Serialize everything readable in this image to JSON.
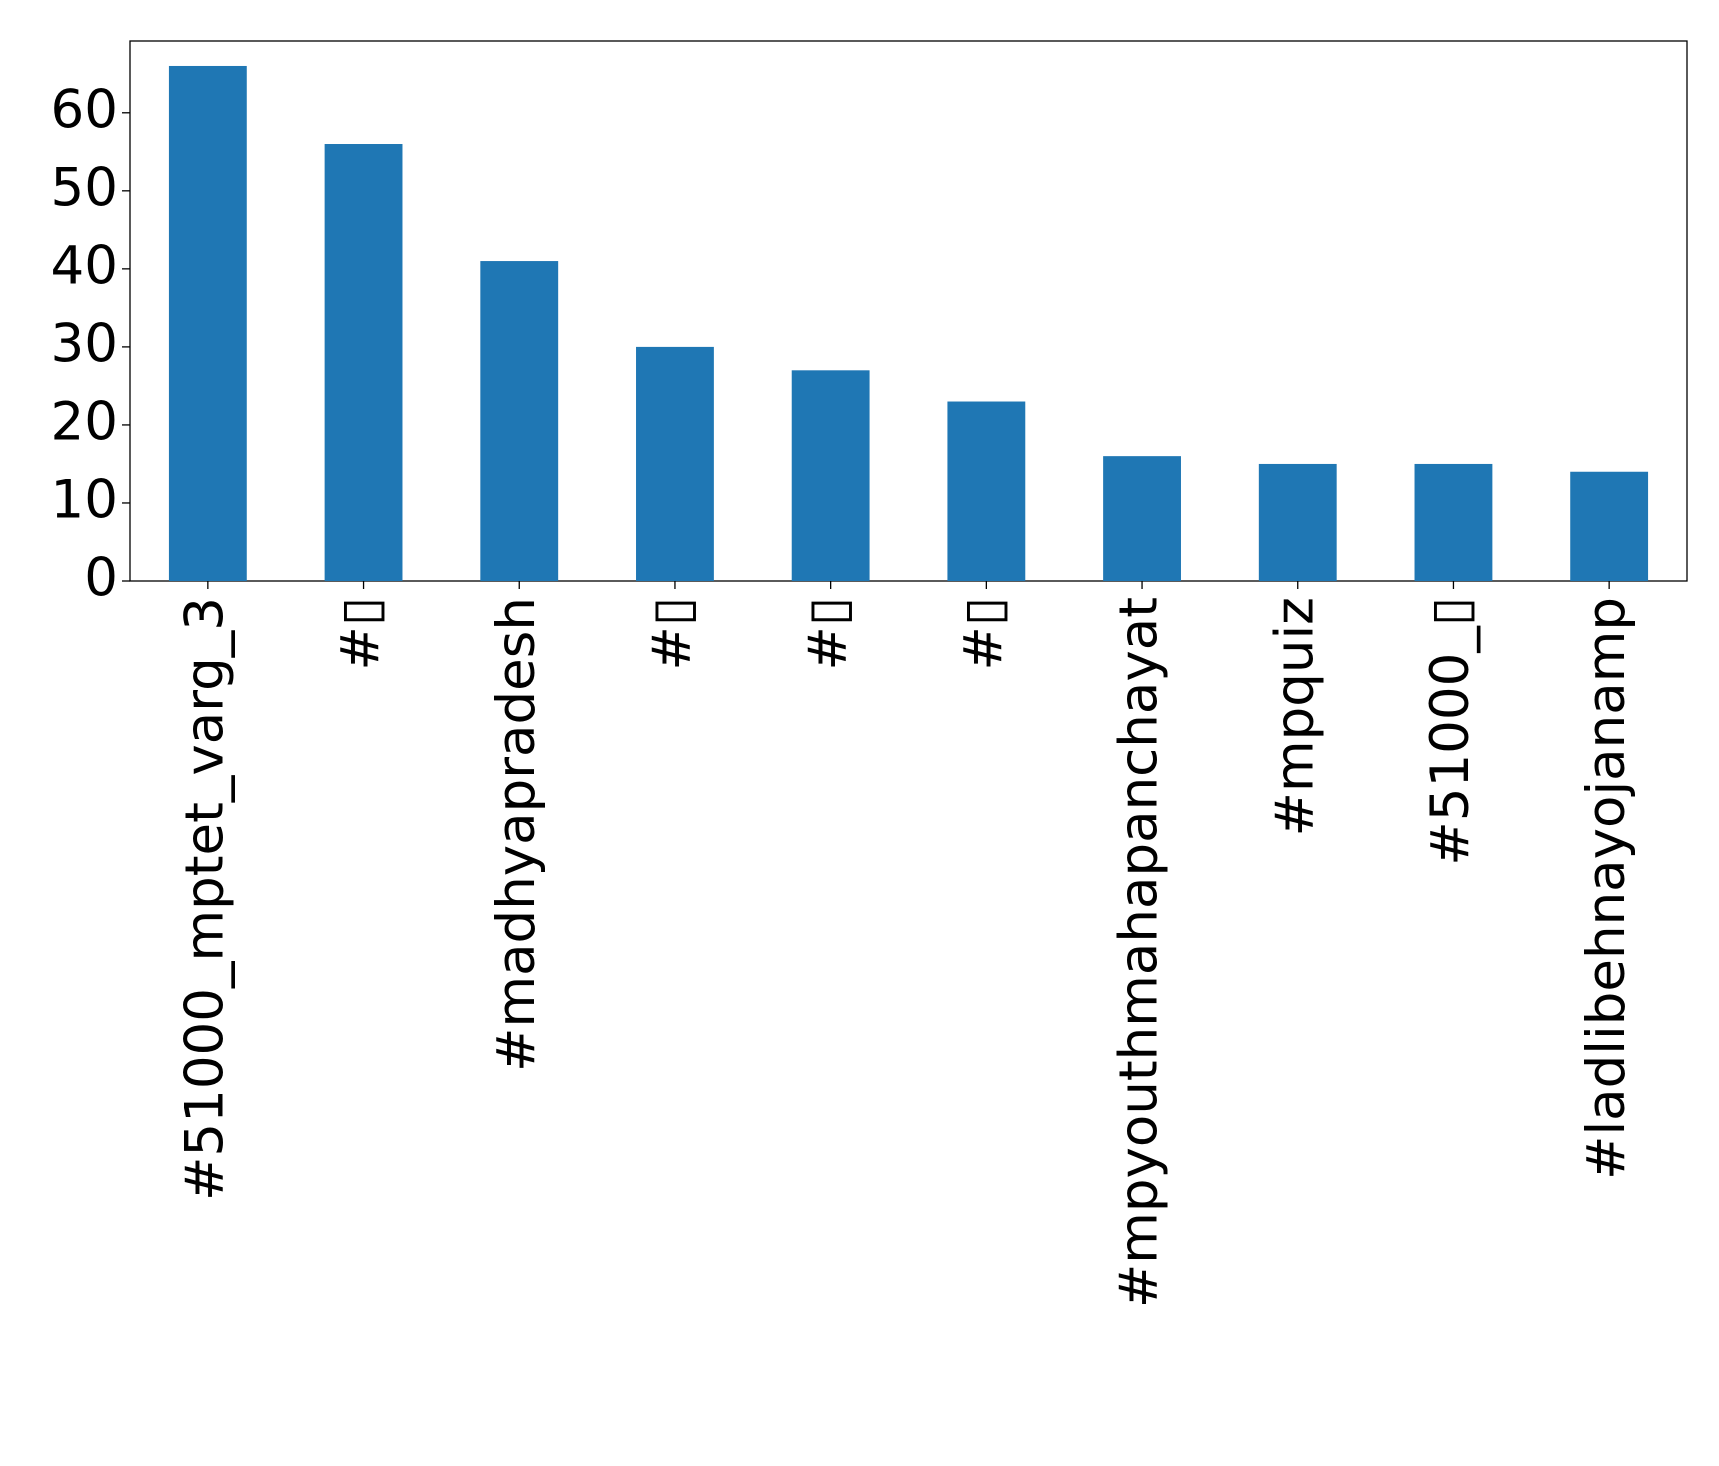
{
  "chart_data": {
    "type": "bar",
    "categories": [
      "#51000_mptet_varg_3",
      "#▯",
      "#madhyapradesh",
      "#▯",
      "#▯",
      "#▯",
      "#mpyouthmahapanchayat",
      "#mpquiz",
      "#51000_▯",
      "#ladlibehnayojanamp"
    ],
    "values": [
      66,
      56,
      41,
      30,
      27,
      23,
      16,
      15,
      15,
      14
    ],
    "color": "#1f77b4",
    "ylim": [
      0,
      69.2
    ],
    "yticks": [
      0,
      10,
      20,
      30,
      40,
      50,
      60
    ],
    "grid": false
  }
}
